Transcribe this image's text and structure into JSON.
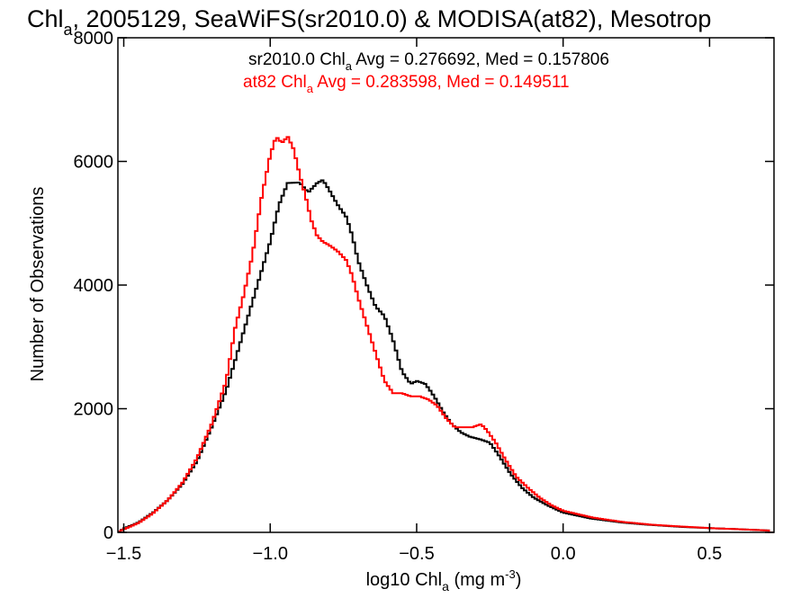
{
  "chart_data": {
    "type": "line",
    "title": {
      "pre": "Chl",
      "sub": "a",
      "post": ", 2005129, SeaWiFS(sr2010.0) & MODISA(at82), Mesotrop"
    },
    "xlabel": {
      "pre": "log10 Chl",
      "sub": "a",
      "post": " (mg m",
      "sup": "-3",
      "end": ")"
    },
    "ylabel": "Number of Observations",
    "xlim": [
      -1.52,
      0.72
    ],
    "ylim": [
      0,
      8000
    ],
    "xticks": [
      -1.5,
      -1.0,
      -0.5,
      0.0,
      0.5
    ],
    "xtick_labels": [
      "−1.5",
      "−1.0",
      "−0.5",
      "0.0",
      "0.5"
    ],
    "yticks": [
      0,
      2000,
      4000,
      6000,
      8000
    ],
    "ytick_labels": [
      "0",
      "2000",
      "4000",
      "6000",
      "8000"
    ],
    "grid": false,
    "series": [
      {
        "name": "sr2010.0",
        "color": "#000000",
        "annotation": {
          "pre": "sr2010.0 Chl",
          "sub": "a",
          "post": " Avg = 0.276692, Med = 0.157806"
        },
        "points": [
          [
            -1.52,
            0
          ],
          [
            -1.5,
            60
          ],
          [
            -1.45,
            160
          ],
          [
            -1.4,
            320
          ],
          [
            -1.35,
            520
          ],
          [
            -1.3,
            780
          ],
          [
            -1.25,
            1150
          ],
          [
            -1.2,
            1700
          ],
          [
            -1.15,
            2300
          ],
          [
            -1.1,
            3100
          ],
          [
            -1.05,
            3900
          ],
          [
            -1.0,
            4700
          ],
          [
            -0.97,
            5300
          ],
          [
            -0.94,
            5650
          ],
          [
            -0.9,
            5660
          ],
          [
            -0.87,
            5500
          ],
          [
            -0.84,
            5650
          ],
          [
            -0.82,
            5700
          ],
          [
            -0.8,
            5550
          ],
          [
            -0.77,
            5300
          ],
          [
            -0.74,
            5100
          ],
          [
            -0.72,
            4800
          ],
          [
            -0.7,
            4400
          ],
          [
            -0.67,
            4000
          ],
          [
            -0.64,
            3650
          ],
          [
            -0.61,
            3500
          ],
          [
            -0.58,
            3100
          ],
          [
            -0.55,
            2600
          ],
          [
            -0.52,
            2400
          ],
          [
            -0.5,
            2450
          ],
          [
            -0.47,
            2400
          ],
          [
            -0.44,
            2200
          ],
          [
            -0.41,
            1950
          ],
          [
            -0.38,
            1750
          ],
          [
            -0.35,
            1620
          ],
          [
            -0.32,
            1550
          ],
          [
            -0.28,
            1500
          ],
          [
            -0.25,
            1450
          ],
          [
            -0.22,
            1250
          ],
          [
            -0.18,
            950
          ],
          [
            -0.14,
            720
          ],
          [
            -0.1,
            560
          ],
          [
            -0.05,
            430
          ],
          [
            0.0,
            320
          ],
          [
            0.1,
            220
          ],
          [
            0.2,
            160
          ],
          [
            0.3,
            120
          ],
          [
            0.4,
            90
          ],
          [
            0.5,
            70
          ],
          [
            0.6,
            50
          ],
          [
            0.7,
            30
          ]
        ]
      },
      {
        "name": "at82",
        "color": "#ff0000",
        "annotation": {
          "pre": "at82 Chl",
          "sub": "a",
          "post": " Avg = 0.283598, Med = 0.149511"
        },
        "points": [
          [
            -1.52,
            0
          ],
          [
            -1.5,
            50
          ],
          [
            -1.45,
            150
          ],
          [
            -1.4,
            310
          ],
          [
            -1.35,
            520
          ],
          [
            -1.3,
            800
          ],
          [
            -1.25,
            1200
          ],
          [
            -1.2,
            1750
          ],
          [
            -1.15,
            2450
          ],
          [
            -1.12,
            3300
          ],
          [
            -1.09,
            3850
          ],
          [
            -1.06,
            4500
          ],
          [
            -1.03,
            5400
          ],
          [
            -1.0,
            6100
          ],
          [
            -0.98,
            6400
          ],
          [
            -0.96,
            6300
          ],
          [
            -0.94,
            6400
          ],
          [
            -0.92,
            6200
          ],
          [
            -0.9,
            5800
          ],
          [
            -0.88,
            5450
          ],
          [
            -0.86,
            5050
          ],
          [
            -0.84,
            4800
          ],
          [
            -0.82,
            4700
          ],
          [
            -0.8,
            4650
          ],
          [
            -0.77,
            4550
          ],
          [
            -0.74,
            4400
          ],
          [
            -0.72,
            4150
          ],
          [
            -0.7,
            3800
          ],
          [
            -0.67,
            3350
          ],
          [
            -0.64,
            2900
          ],
          [
            -0.61,
            2450
          ],
          [
            -0.58,
            2250
          ],
          [
            -0.55,
            2250
          ],
          [
            -0.52,
            2200
          ],
          [
            -0.49,
            2200
          ],
          [
            -0.46,
            2150
          ],
          [
            -0.43,
            2050
          ],
          [
            -0.4,
            1850
          ],
          [
            -0.37,
            1700
          ],
          [
            -0.34,
            1700
          ],
          [
            -0.31,
            1700
          ],
          [
            -0.28,
            1750
          ],
          [
            -0.26,
            1650
          ],
          [
            -0.23,
            1450
          ],
          [
            -0.2,
            1200
          ],
          [
            -0.16,
            900
          ],
          [
            -0.12,
            720
          ],
          [
            -0.08,
            560
          ],
          [
            -0.04,
            440
          ],
          [
            0.0,
            350
          ],
          [
            0.1,
            240
          ],
          [
            0.2,
            170
          ],
          [
            0.3,
            125
          ],
          [
            0.4,
            95
          ],
          [
            0.5,
            70
          ],
          [
            0.6,
            50
          ],
          [
            0.7,
            30
          ]
        ]
      }
    ]
  }
}
